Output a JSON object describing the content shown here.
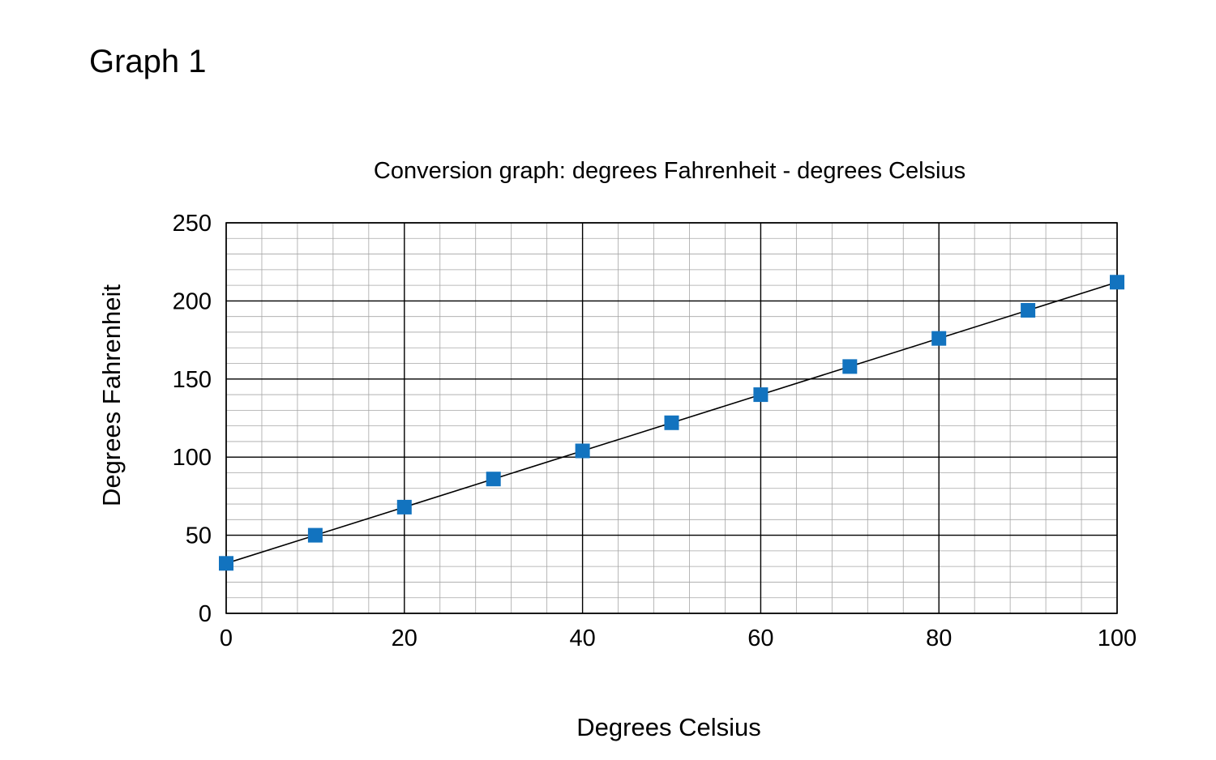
{
  "page": {
    "heading": "Graph 1"
  },
  "chart_data": {
    "type": "scatter",
    "title": "Conversion graph: degrees Fahrenheit - degrees Celsius",
    "xlabel": "Degrees Celsius",
    "ylabel": "Degrees Fahrenheit",
    "xlim": [
      0,
      100
    ],
    "ylim": [
      0,
      250
    ],
    "x_ticks": [
      0,
      20,
      40,
      60,
      80,
      100
    ],
    "y_ticks": [
      0,
      50,
      100,
      150,
      200,
      250
    ],
    "x_tick_labels": [
      "0",
      "20",
      "40",
      "60",
      "80",
      "100"
    ],
    "y_tick_labels": [
      "0",
      "50",
      "100",
      "150",
      "200",
      "250"
    ],
    "grid": true,
    "minor_grid_step": {
      "x": 4,
      "y": 10
    },
    "marker": "square",
    "marker_color": "#1273bf",
    "trend_line": {
      "from": [
        0,
        32
      ],
      "to": [
        100,
        212
      ],
      "color": "#000000"
    },
    "points": [
      {
        "x": 0,
        "y": 32
      },
      {
        "x": 10,
        "y": 50
      },
      {
        "x": 20,
        "y": 68
      },
      {
        "x": 30,
        "y": 86
      },
      {
        "x": 40,
        "y": 104
      },
      {
        "x": 50,
        "y": 122
      },
      {
        "x": 60,
        "y": 140
      },
      {
        "x": 70,
        "y": 158
      },
      {
        "x": 80,
        "y": 176
      },
      {
        "x": 90,
        "y": 194
      },
      {
        "x": 100,
        "y": 212
      }
    ]
  }
}
